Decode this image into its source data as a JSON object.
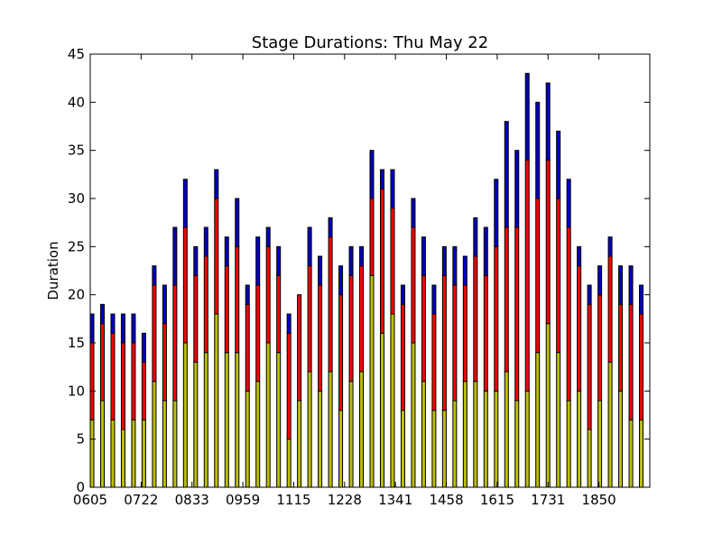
{
  "chart_data": {
    "type": "bar",
    "stacked": true,
    "title": "Stage Durations: Thu May 22",
    "xlabel": "",
    "ylabel": "Duration",
    "ylim": [
      0,
      45
    ],
    "yticks": [
      0,
      5,
      10,
      15,
      20,
      25,
      30,
      35,
      40,
      45
    ],
    "xtick_labels": [
      "0605",
      "0722",
      "0833",
      "0959",
      "1115",
      "1228",
      "1341",
      "1458",
      "1615",
      "1731",
      "1850"
    ],
    "grid": false,
    "legend": "none",
    "categories": [
      "1",
      "2",
      "3",
      "4",
      "5",
      "6",
      "7",
      "8",
      "9",
      "10",
      "11",
      "12",
      "13",
      "14",
      "15",
      "16",
      "17",
      "18",
      "19",
      "20",
      "21",
      "22",
      "23",
      "24",
      "25",
      "26",
      "27",
      "28",
      "29",
      "30",
      "31",
      "32",
      "33",
      "34",
      "35",
      "36",
      "37",
      "38",
      "39",
      "40",
      "41",
      "42",
      "43",
      "44",
      "45",
      "46",
      "47",
      "48",
      "49",
      "50",
      "51",
      "52",
      "53",
      "54"
    ],
    "series": [
      {
        "color": "#bfbf00",
        "values": [
          7,
          9,
          7,
          6,
          7,
          7,
          11,
          9,
          9,
          15,
          13,
          14,
          18,
          14,
          14,
          10,
          11,
          15,
          14,
          5,
          9,
          12,
          10,
          12,
          8,
          11,
          12,
          22,
          16,
          18,
          8,
          15,
          11,
          8,
          8,
          9,
          11,
          11,
          10,
          10,
          12,
          9,
          10,
          14,
          17,
          14,
          9,
          10,
          6,
          9,
          13,
          10,
          7,
          7
        ]
      },
      {
        "color": "#ff0000",
        "values": [
          8,
          8,
          9,
          9,
          8,
          6,
          10,
          8,
          12,
          12,
          9,
          10,
          12,
          9,
          11,
          9,
          10,
          10,
          8,
          11,
          11,
          11,
          11,
          14,
          12,
          11,
          11,
          8,
          15,
          11,
          11,
          12,
          11,
          10,
          14,
          12,
          10,
          13,
          12,
          15,
          15,
          18,
          24,
          16,
          17,
          16,
          18,
          13,
          13,
          11,
          11,
          9,
          12,
          11
        ]
      },
      {
        "color": "#0000bf",
        "values": [
          3,
          2,
          2,
          3,
          3,
          3,
          2,
          4,
          6,
          5,
          3,
          3,
          3,
          3,
          5,
          2,
          5,
          2,
          3,
          2,
          0,
          4,
          3,
          2,
          3,
          3,
          2,
          5,
          2,
          4,
          2,
          3,
          4,
          3,
          3,
          4,
          3,
          4,
          5,
          7,
          11,
          8,
          9,
          10,
          8,
          7,
          5,
          2,
          2,
          3,
          2,
          4,
          4,
          3
        ]
      }
    ]
  }
}
